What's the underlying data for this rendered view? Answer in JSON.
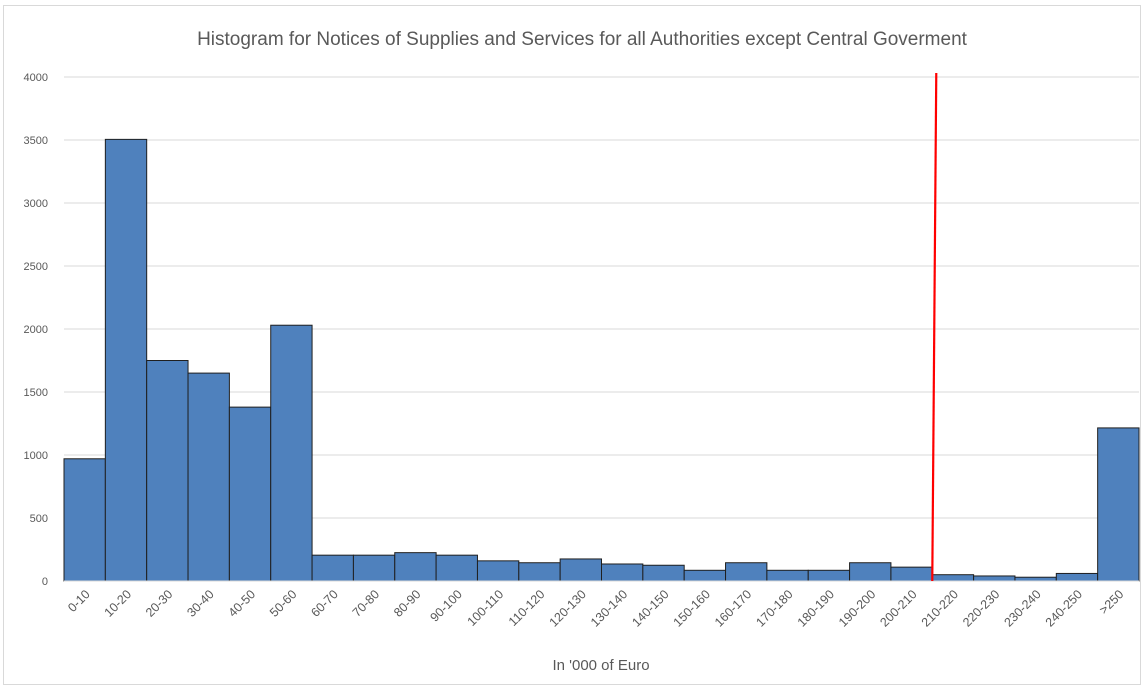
{
  "chart_data": {
    "type": "bar",
    "title": "Histogram for Notices of Supplies and Services for all Authorities except Central Goverment",
    "xlabel": "In '000 of Euro",
    "ylabel": "",
    "ylim": [
      0,
      4000
    ],
    "yticks": [
      0,
      500,
      1000,
      1500,
      2000,
      2500,
      3000,
      3500,
      4000
    ],
    "grid": true,
    "legend": "none",
    "categories": [
      "0-10",
      "10-20",
      "20-30",
      "30-40",
      "40-50",
      "50-60",
      "60-70",
      "70-80",
      "80-90",
      "90-100",
      "100-110",
      "110-120",
      "120-130",
      "130-140",
      "140-150",
      "150-160",
      "160-170",
      "170-180",
      "180-190",
      "190-200",
      "200-210",
      "210-220",
      "220-230",
      "230-240",
      "240-250",
      ">250"
    ],
    "values": [
      970,
      3505,
      1750,
      1650,
      1380,
      2030,
      205,
      205,
      225,
      205,
      160,
      145,
      175,
      135,
      125,
      85,
      145,
      85,
      85,
      145,
      110,
      50,
      40,
      30,
      60,
      1215
    ],
    "reference_line": {
      "x_category": "210-220",
      "color": "#ff0000"
    },
    "colors": {
      "bar_fill": "#4f81bd",
      "bar_stroke": "#1f1f1f",
      "grid": "#d9d9d9",
      "text": "#595959",
      "reference": "#ff0000"
    }
  }
}
